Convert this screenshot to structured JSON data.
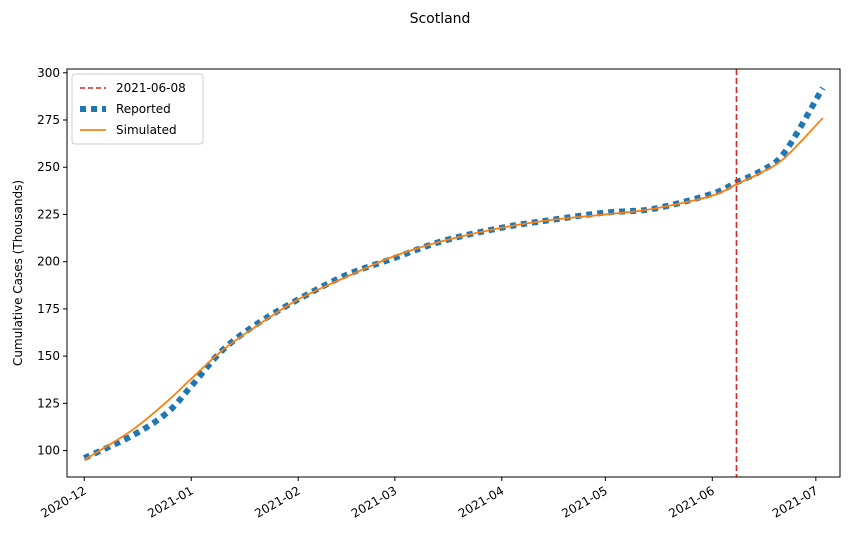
{
  "chart_data": {
    "type": "line",
    "title": "Scotland",
    "xlabel": "",
    "ylabel": "Cumulative Cases (Thousands)",
    "ylim": [
      86,
      302
    ],
    "xlim": [
      "2020-11-26",
      "2021-07-08"
    ],
    "x_ticks": [
      "2020-12",
      "2021-01",
      "2021-02",
      "2021-03",
      "2021-04",
      "2021-05",
      "2021-06",
      "2021-07"
    ],
    "y_ticks": [
      100,
      125,
      150,
      175,
      200,
      225,
      250,
      275,
      300
    ],
    "grid": false,
    "legend_position": "upper-left",
    "vline": {
      "label": "2021-06-08",
      "date": "2021-06-08",
      "color": "#d62728"
    },
    "x": [
      "2020-12-01",
      "2020-12-15",
      "2020-12-25",
      "2021-01-01",
      "2021-01-10",
      "2021-01-20",
      "2021-02-01",
      "2021-02-15",
      "2021-03-01",
      "2021-03-15",
      "2021-04-01",
      "2021-04-15",
      "2021-05-01",
      "2021-05-15",
      "2021-06-01",
      "2021-06-08",
      "2021-06-15",
      "2021-06-22",
      "2021-07-03"
    ],
    "series": [
      {
        "name": "Reported",
        "color": "#1f77b4",
        "style": "dotted",
        "values": [
          96,
          108,
          120,
          134,
          153,
          167,
          180,
          193,
          202,
          211,
          218,
          222,
          226,
          228,
          236,
          242,
          248,
          258,
          292
        ]
      },
      {
        "name": "Simulated",
        "color": "#ff7f0e",
        "style": "solid",
        "values": [
          95,
          111,
          126,
          138,
          153,
          166,
          180,
          192,
          203,
          211,
          218,
          222,
          225,
          228,
          235,
          241,
          247,
          255,
          276
        ]
      }
    ]
  }
}
